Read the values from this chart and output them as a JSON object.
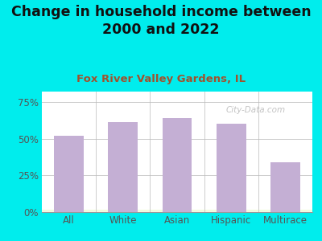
{
  "title": "Change in household income between\n2000 and 2022",
  "subtitle": "Fox River Valley Gardens, IL",
  "categories": [
    "All",
    "White",
    "Asian",
    "Hispanic",
    "Multirace"
  ],
  "values": [
    52,
    61,
    64,
    60,
    34
  ],
  "bar_color": "#c4afd4",
  "title_fontsize": 12.5,
  "subtitle_fontsize": 9.5,
  "subtitle_color": "#a0522d",
  "title_color": "#111111",
  "bg_outer": "#00eded",
  "yticks": [
    0,
    25,
    50,
    75
  ],
  "ylim": [
    0,
    82
  ],
  "watermark": "City-Data.com",
  "tick_color": "#555555",
  "grid_color": "#cccccc"
}
